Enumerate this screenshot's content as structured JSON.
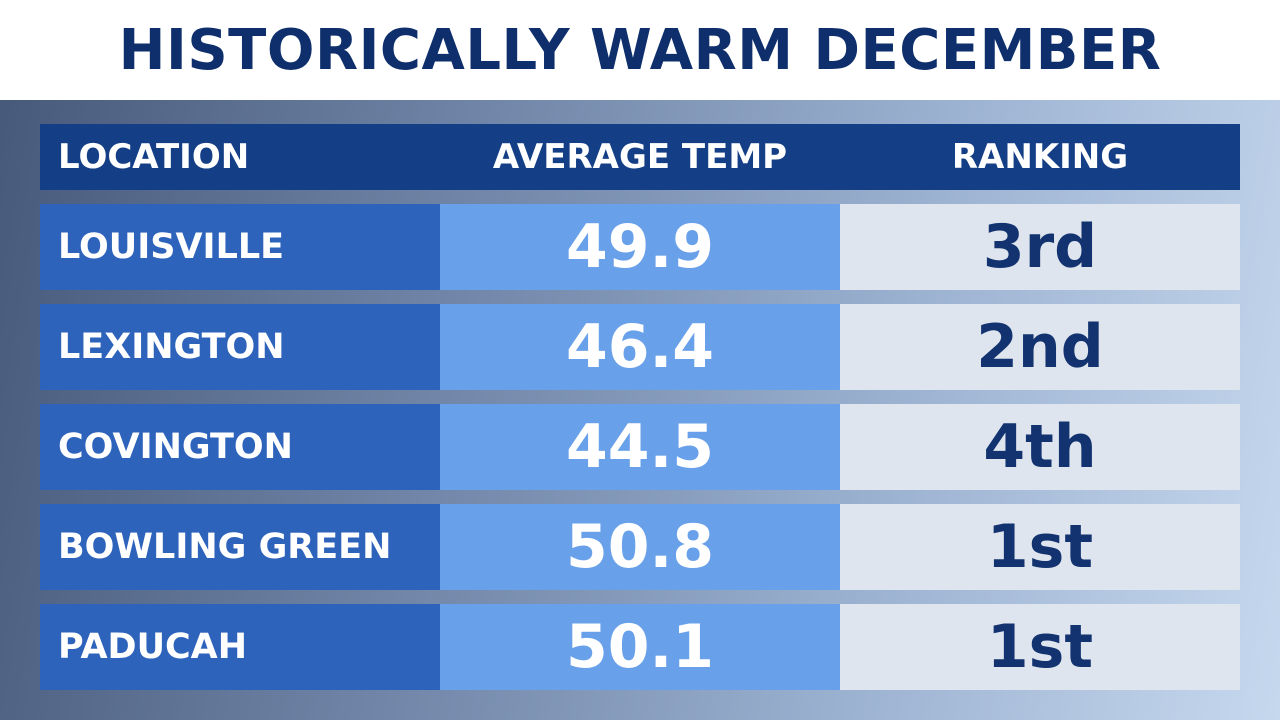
{
  "header": {
    "title": "HISTORICALLY WARM DECEMBER"
  },
  "table": {
    "columns": [
      "LOCATION",
      "AVERAGE TEMP",
      "RANKING"
    ],
    "rows": [
      [
        "LOUISVILLE",
        "49.9",
        "3rd"
      ],
      [
        "LEXINGTON",
        "46.4",
        "2nd"
      ],
      [
        "COVINGTON",
        "44.5",
        "4th"
      ],
      [
        "BOWLING GREEN",
        "50.8",
        "1st"
      ],
      [
        "PADUCAH",
        "50.1",
        "1st"
      ]
    ]
  }
}
